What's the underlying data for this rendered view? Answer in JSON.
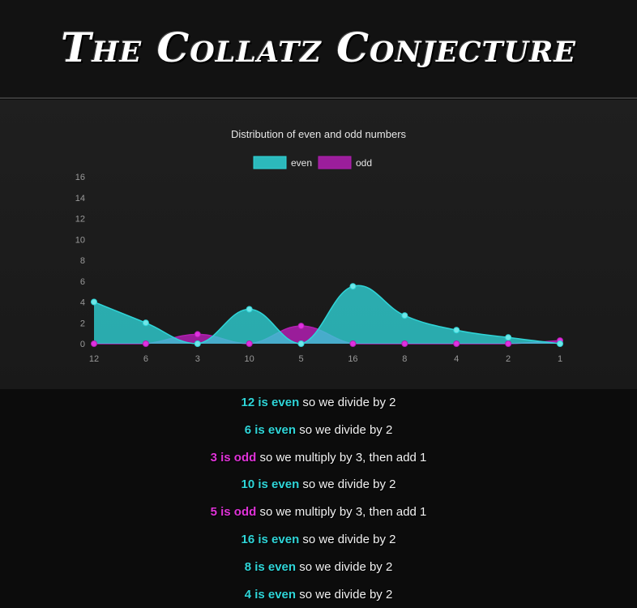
{
  "header": {
    "title": "The Collatz Conjecture"
  },
  "chart_data": {
    "type": "area",
    "title": "Distribution of even and odd numbers",
    "categories": [
      "12",
      "6",
      "3",
      "10",
      "5",
      "16",
      "8",
      "4",
      "2",
      "1"
    ],
    "series": [
      {
        "name": "even",
        "values": [
          4,
          2,
          0,
          3.3,
          0,
          5.5,
          2.7,
          1.3,
          0.6,
          0
        ]
      },
      {
        "name": "odd",
        "values": [
          0,
          0,
          0.9,
          0,
          1.7,
          0,
          0,
          0,
          0,
          0.3
        ]
      }
    ],
    "ylim": [
      0,
      16
    ],
    "yticks": [
      "0",
      "2",
      "4",
      "6",
      "8",
      "10",
      "12",
      "14",
      "16"
    ],
    "legend": "top",
    "colors": {
      "even": "#2fd5d8",
      "odd": "#b21fb2"
    }
  },
  "steps": [
    {
      "num": "12 is even",
      "rest": " so we divide by 2",
      "kind": "even"
    },
    {
      "num": "6 is even",
      "rest": " so we divide by 2",
      "kind": "even"
    },
    {
      "num": "3 is odd",
      "rest": " so we multiply by 3, then add 1",
      "kind": "odd"
    },
    {
      "num": "10 is even",
      "rest": " so we divide by 2",
      "kind": "even"
    },
    {
      "num": "5 is odd",
      "rest": " so we multiply by 3, then add 1",
      "kind": "odd"
    },
    {
      "num": "16 is even",
      "rest": " so we divide by 2",
      "kind": "even"
    },
    {
      "num": "8 is even",
      "rest": " so we divide by 2",
      "kind": "even"
    },
    {
      "num": "4 is even",
      "rest": " so we divide by 2",
      "kind": "even"
    }
  ]
}
